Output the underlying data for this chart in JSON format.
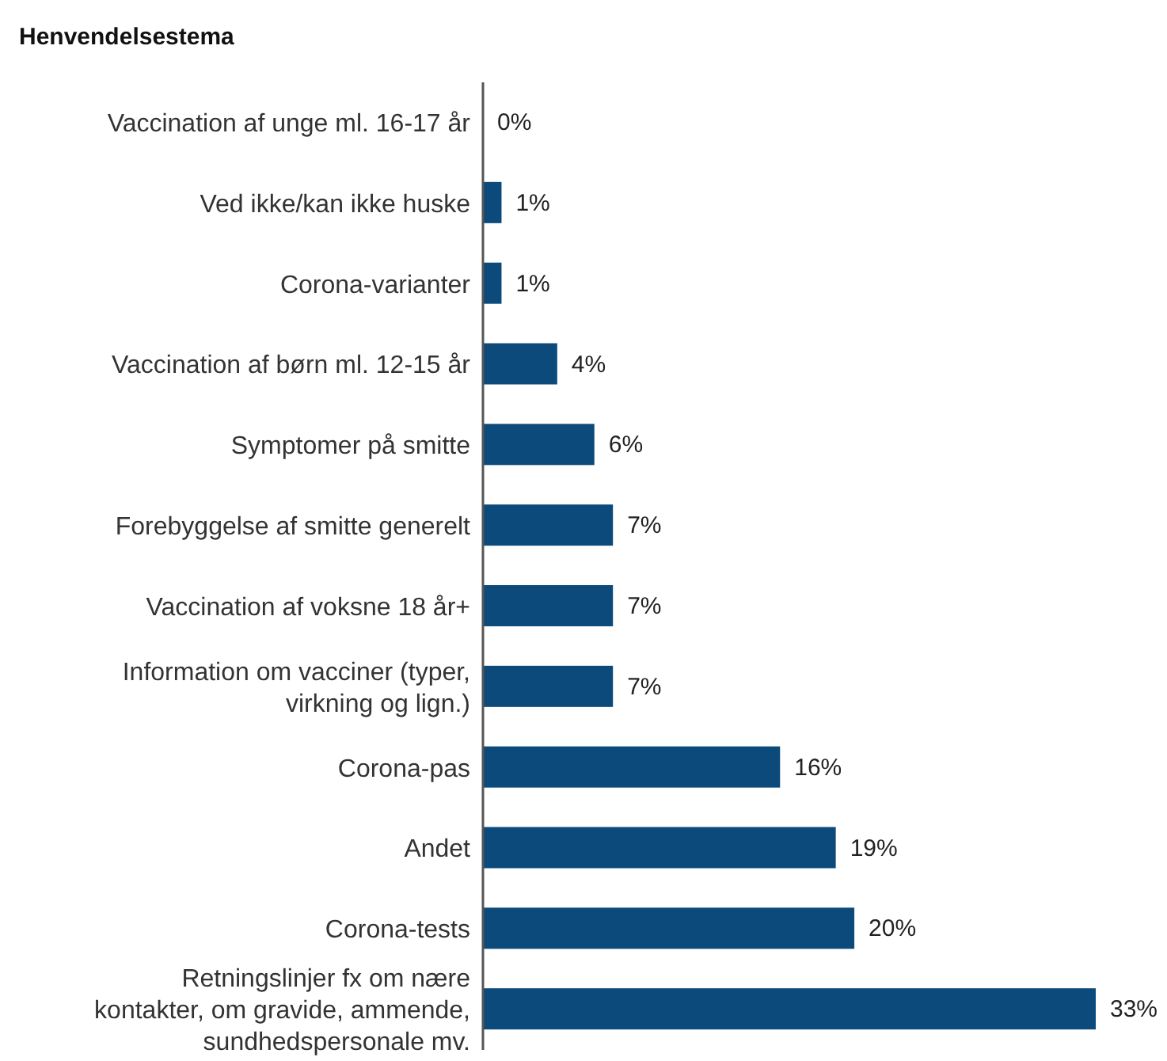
{
  "chart_data": {
    "type": "bar",
    "orientation": "horizontal",
    "title": "Henvendelsestema",
    "categories": [
      "Vaccination af unge ml. 16-17 år",
      "Ved ikke/kan ikke huske",
      "Corona-varianter",
      "Vaccination af børn ml. 12-15 år",
      "Symptomer på smitte",
      "Forebyggelse af smitte generelt",
      "Vaccination af voksne 18 år+",
      "Information om vacciner (typer,\nvirkning og lign.)",
      "Corona-pas",
      "Andet",
      "Corona-tests",
      "Retningslinjer fx om nære\nkontakter, om gravide, ammende,\nsundhedspersonale mv."
    ],
    "values": [
      0,
      1,
      1,
      4,
      6,
      7,
      7,
      7,
      16,
      19,
      20,
      33
    ],
    "value_labels": [
      "0%",
      "1%",
      "1%",
      "4%",
      "6%",
      "7%",
      "7%",
      "7%",
      "16%",
      "19%",
      "20%",
      "33%"
    ],
    "color": "#0b4a7a"
  }
}
